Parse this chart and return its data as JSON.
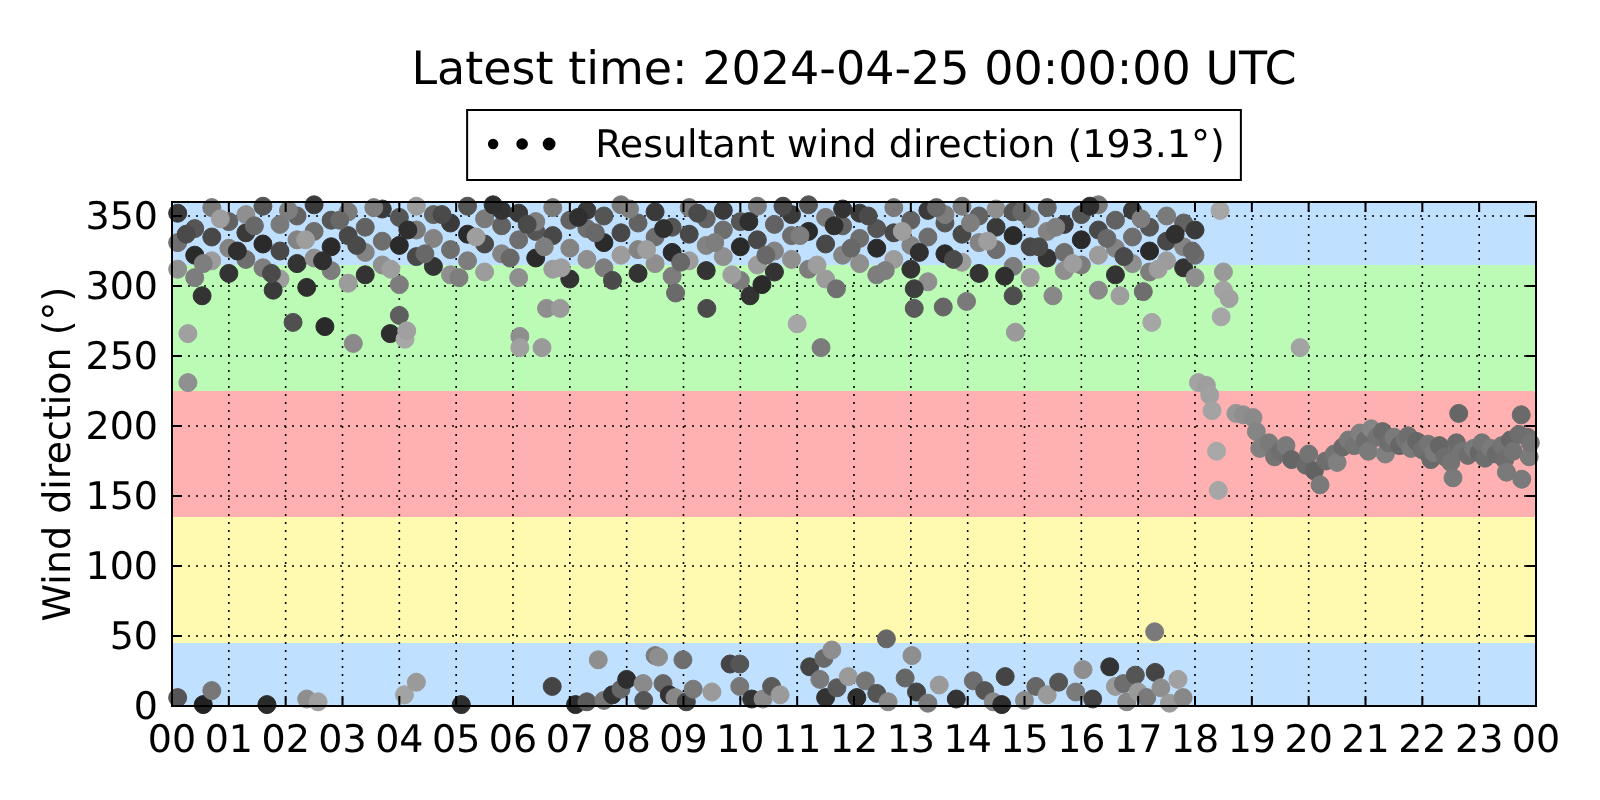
{
  "chart_data": {
    "type": "scatter",
    "title": "Latest time: 2024-04-25 00:00:00 UTC",
    "ylabel": "Wind direction (°)",
    "xlim": [
      0,
      24
    ],
    "xticks": [
      {
        "value": 0,
        "label": "00"
      },
      {
        "value": 1,
        "label": "01"
      },
      {
        "value": 2,
        "label": "02"
      },
      {
        "value": 3,
        "label": "03"
      },
      {
        "value": 4,
        "label": "04"
      },
      {
        "value": 5,
        "label": "05"
      },
      {
        "value": 6,
        "label": "06"
      },
      {
        "value": 7,
        "label": "07"
      },
      {
        "value": 8,
        "label": "08"
      },
      {
        "value": 9,
        "label": "09"
      },
      {
        "value": 10,
        "label": "10"
      },
      {
        "value": 11,
        "label": "11"
      },
      {
        "value": 12,
        "label": "12"
      },
      {
        "value": 13,
        "label": "13"
      },
      {
        "value": 14,
        "label": "14"
      },
      {
        "value": 15,
        "label": "15"
      },
      {
        "value": 16,
        "label": "16"
      },
      {
        "value": 17,
        "label": "17"
      },
      {
        "value": 18,
        "label": "18"
      },
      {
        "value": 19,
        "label": "19"
      },
      {
        "value": 20,
        "label": "20"
      },
      {
        "value": 21,
        "label": "21"
      },
      {
        "value": 22,
        "label": "22"
      },
      {
        "value": 23,
        "label": "23"
      },
      {
        "value": 24,
        "label": "00"
      }
    ],
    "ylim": [
      0,
      360
    ],
    "yticks": [
      0,
      50,
      100,
      150,
      200,
      250,
      300,
      350
    ],
    "grid": true,
    "legend": "top",
    "marker": "circle",
    "bands": [
      {
        "axis": "y",
        "from": 0,
        "to": 45,
        "color": "#bfe0ff"
      },
      {
        "axis": "y",
        "from": 45,
        "to": 135,
        "color": "#fffab0"
      },
      {
        "axis": "y",
        "from": 135,
        "to": 225,
        "color": "#ffb0b0"
      },
      {
        "axis": "y",
        "from": 225,
        "to": 315,
        "color": "#bbfbb6"
      },
      {
        "axis": "y",
        "from": 315,
        "to": 360,
        "color": "#bfe0ff"
      }
    ],
    "x": [
      0.1,
      0.1,
      0.1,
      0.4,
      0.4,
      0.4,
      0.7,
      0.7,
      0.7,
      1,
      1,
      1,
      1.3,
      1.3,
      1.3,
      1.6,
      1.6,
      1.6,
      1.9,
      1.9,
      1.9,
      2.2,
      2.2,
      2.2,
      2.5,
      2.5,
      2.5,
      2.8,
      2.8,
      2.8,
      3.1,
      3.1,
      3.1,
      3.4,
      3.4,
      3.4,
      3.7,
      3.7,
      3.7,
      4,
      4,
      4,
      4.3,
      4.3,
      4.3,
      4.6,
      4.6,
      4.6,
      4.9,
      4.9,
      4.9,
      5.2,
      5.2,
      5.2,
      5.5,
      5.5,
      5.5,
      5.8,
      5.8,
      5.8,
      6.1,
      6.1,
      6.1,
      6.4,
      6.4,
      6.4,
      6.7,
      6.7,
      6.7,
      7,
      7,
      7,
      7.3,
      7.3,
      7.3,
      7.6,
      7.6,
      7.6,
      7.9,
      7.9,
      7.9,
      8.2,
      8.2,
      8.2,
      8.5,
      8.5,
      8.5,
      8.8,
      8.8,
      8.8,
      9.1,
      9.1,
      9.1,
      9.4,
      9.4,
      9.4,
      9.7,
      9.7,
      9.7,
      10,
      10,
      10,
      10.3,
      10.3,
      10.3,
      10.6,
      10.6,
      10.6,
      10.9,
      10.9,
      10.9,
      11.2,
      11.2,
      11.2,
      11.5,
      11.5,
      11.5,
      11.8,
      11.8,
      11.8,
      12.1,
      12.1,
      12.1,
      12.4,
      12.4,
      12.4,
      12.7,
      12.7,
      12.7,
      13,
      13,
      13,
      13.3,
      13.3,
      13.3,
      13.6,
      13.6,
      13.6,
      13.9,
      13.9,
      13.9,
      14.2,
      14.2,
      14.2,
      14.5,
      14.5,
      14.5,
      14.8,
      14.8,
      14.8,
      15.1,
      15.1,
      15.1,
      15.4,
      15.4,
      15.4,
      15.7,
      15.7,
      15.7,
      16,
      16,
      16,
      16.3,
      16.3,
      16.3,
      16.6,
      16.6,
      16.6,
      16.9,
      16.9,
      16.9,
      17.2,
      17.2,
      17.2,
      17.5,
      17.5,
      17.5,
      17.8,
      17.8,
      17.8,
      18,
      18,
      18,
      0.28,
      0.28,
      0.53,
      1.78,
      2.13,
      2.37,
      2.69,
      3.19,
      3.84,
      4,
      4.1,
      4.13,
      6.12,
      6.12,
      6.51,
      6.59,
      6.83,
      8.86,
      9.41,
      10.17,
      10.38,
      11,
      11.42,
      11.69,
      12.57,
      13.06,
      13.06,
      13.57,
      13.98,
      14.84,
      14.8,
      15.5,
      16.3,
      16.68,
      17.09,
      17.24,
      17.29,
      18.44,
      18.5,
      18.5,
      18.6,
      18.46,
      19.85,
      0.1,
      0.55,
      0.7,
      1.67,
      2.37,
      2.57,
      4.09,
      4.3,
      5.09,
      6.69,
      7.1,
      7.3,
      7.5,
      7.6,
      7.75,
      7.9,
      8,
      8.29,
      8.3,
      8.5,
      8.56,
      8.64,
      8.75,
      8.85,
      8.99,
      9.05,
      9.17,
      9.5,
      9.82,
      9.99,
      9.99,
      10.2,
      10.4,
      10.55,
      10.7,
      11.22,
      11.4,
      11.47,
      11.5,
      11.61,
      11.7,
      11.9,
      12.05,
      12.2,
      12.4,
      12.6,
      12.9,
      13.02,
      13.1,
      13.3,
      13.5,
      13.8,
      14.1,
      14.3,
      14.45,
      14.6,
      14.66,
      15,
      15.2,
      15.4,
      15.6,
      15.9,
      16.03,
      16.2,
      16.5,
      16.6,
      16.74,
      16.8,
      16.95,
      17,
      17.15,
      17.3,
      17.4,
      17.55,
      17.7,
      17.79,
      18.06,
      18.2,
      18.26,
      18.3,
      18.38,
      18.41,
      18.72,
      18.85,
      19.02,
      19.08,
      19.14,
      19.3,
      19.4,
      19.5,
      19.6,
      19.7,
      19.95,
      20,
      20.1,
      20.2,
      20.3,
      20.45,
      20.5,
      20.6,
      20.7,
      20.8,
      20.9,
      21,
      21.05,
      21.1,
      21.2,
      21.3,
      21.35,
      21.4,
      21.5,
      21.6,
      21.7,
      21.75,
      21.8,
      21.9,
      22,
      22.1,
      22.15,
      22.2,
      22.3,
      22.4,
      22.5,
      22.54,
      22.6,
      22.64,
      22.7,
      22.8,
      22.9,
      23,
      23.05,
      23.1,
      23.2,
      23.3,
      23.4,
      23.45,
      23.48,
      23.55,
      23.6,
      23.7,
      23.74,
      23.75,
      23.85,
      23.88,
      23.9,
      0.25,
      0.55,
      0.85,
      1.15,
      1.45,
      1.75,
      2.05,
      2.35,
      2.65,
      2.95,
      3.25,
      3.55,
      3.85,
      4.15,
      4.45,
      4.75,
      5.05,
      5.35,
      5.65,
      5.95,
      6.25,
      6.55,
      6.85,
      7.15,
      7.45,
      7.75,
      8.05,
      8.35,
      8.65,
      8.95,
      9.25,
      9.55,
      9.85,
      10.15,
      10.45,
      10.75,
      11.05,
      11.35,
      11.65,
      11.95,
      12.25,
      12.55,
      12.85,
      13.15,
      13.45,
      13.75,
      14.05,
      14.35,
      14.65,
      14.95,
      15.25,
      15.55,
      15.85,
      16.15,
      16.45,
      16.75,
      17.05,
      17.35,
      17.65,
      17.95
    ],
    "series": [
      {
        "name": "Resultant wind direction (193.1°)",
        "color": "#000000",
        "values": [
          352,
          331,
          312,
          341,
          322,
          306,
          356,
          335,
          318,
          346,
          327,
          309,
          338,
          319,
          351,
          357,
          330,
          313,
          344,
          325,
          305,
          350,
          333,
          316,
          358,
          339,
          320,
          347,
          328,
          311,
          353,
          336,
          302,
          342,
          324,
          308,
          355,
          332,
          315,
          349,
          329,
          301,
          340,
          321,
          357,
          351,
          334,
          314,
          345,
          326,
          308,
          357,
          337,
          318,
          348,
          330,
          310,
          343,
          323,
          354,
          352,
          333,
          306,
          339,
          320,
          346,
          356,
          336,
          312,
          347,
          327,
          305,
          354,
          341,
          319,
          350,
          331,
          313,
          358,
          338,
          322,
          345,
          326,
          309,
          353,
          335,
          316,
          342,
          324,
          307,
          356,
          337,
          318,
          348,
          329,
          311,
          354,
          340,
          321,
          346,
          328,
          304,
          357,
          333,
          315,
          344,
          325,
          310,
          351,
          336,
          319,
          358,
          339,
          312,
          349,
          330,
          305,
          343,
          322,
          355,
          352,
          334,
          316,
          341,
          327,
          308,
          356,
          338,
          319,
          347,
          329,
          312,
          354,
          335,
          303,
          345,
          323,
          351,
          357,
          337,
          317,
          350,
          331,
          309,
          342,
          326,
          355,
          353,
          336,
          314,
          348,
          328,
          306,
          356,
          339,
          320,
          344,
          324,
          311,
          351,
          333,
          315,
          358,
          340,
          322,
          347,
          327,
          308,
          354,
          335,
          316,
          342,
          325,
          310,
          350,
          332,
          318,
          345,
          328,
          313,
          340,
          322,
          306,
          266,
          231,
          293,
          297,
          274,
          299,
          271,
          259,
          266,
          279,
          262,
          268,
          264,
          256,
          256,
          284,
          284,
          295,
          284,
          293,
          301,
          273,
          256,
          298,
          48,
          284,
          298,
          285,
          289,
          267,
          293,
          293,
          297,
          293,
          296,
          274,
          53,
          354,
          310,
          297,
          291,
          278,
          256,
          6,
          1,
          11,
          1,
          5,
          3,
          8,
          17,
          1,
          14,
          1,
          3,
          33,
          4,
          8,
          12,
          19,
          16,
          4,
          36,
          35,
          16,
          8,
          6,
          33,
          3,
          12,
          10,
          30,
          30,
          14,
          5,
          5,
          14,
          8,
          28,
          19,
          34,
          6,
          40,
          13,
          21,
          6,
          18,
          9,
          3,
          20,
          36,
          10,
          2,
          15,
          5,
          18,
          11,
          3,
          1,
          21,
          4,
          14,
          8,
          17,
          10,
          26,
          5,
          28,
          14,
          16,
          3,
          22,
          10,
          6,
          24,
          13,
          2,
          19,
          6,
          231,
          229,
          222,
          211,
          182,
          154,
          209,
          208,
          206,
          196,
          184,
          188,
          178,
          182,
          186,
          176,
          172,
          180,
          168,
          158,
          175,
          180,
          174,
          185,
          190,
          186,
          195,
          190,
          182,
          198,
          192,
          196,
          180,
          188,
          192,
          186,
          190,
          193,
          184,
          189,
          183,
          187,
          176,
          181,
          186,
          178,
          174,
          163,
          188,
          209,
          182,
          179,
          184,
          181,
          188,
          177,
          184,
          180,
          186,
          176,
          167,
          190,
          182,
          194,
          208,
          162,
          192,
          178,
          188,
          337,
          316,
          348,
          325,
          343,
          309,
          354,
          333,
          318,
          347,
          329,
          356,
          312,
          340,
          323,
          351,
          306,
          335,
          358,
          320,
          344,
          328,
          313,
          349,
          338,
          304,
          355,
          326,
          341,
          317,
          352,
          331,
          308,
          346,
          322,
          357,
          336,
          315,
          343,
          327,
          350,
          311,
          339,
          324,
          356,
          319,
          345,
          332,
          307,
          353,
          328,
          342,
          316,
          357,
          334,
          321,
          348,
          312,
          337,
          325
        ],
        "colors": [
          "#3a3a3a",
          "#6e6e6e",
          "#8f8f8f",
          "#555555",
          "#2a2a2a",
          "#7d7d7d",
          "#7a7a7a",
          "#484848",
          "#9c9c9c",
          "#626262",
          "#838383",
          "#333333",
          "#3a3a3a",
          "#6e6e6e",
          "#8f8f8f",
          "#555555",
          "#2a2a2a",
          "#7d7d7d",
          "#7a7a7a",
          "#484848",
          "#9c9c9c",
          "#626262",
          "#838383",
          "#333333",
          "#3a3a3a",
          "#6e6e6e",
          "#8f8f8f",
          "#555555",
          "#2a2a2a",
          "#7d7d7d",
          "#7a7a7a",
          "#484848",
          "#9c9c9c",
          "#626262",
          "#838383",
          "#333333",
          "#3a3a3a",
          "#6e6e6e",
          "#8f8f8f",
          "#555555",
          "#2a2a2a",
          "#7d7d7d",
          "#7a7a7a",
          "#484848",
          "#9c9c9c",
          "#626262",
          "#838383",
          "#333333",
          "#3a3a3a",
          "#6e6e6e",
          "#8f8f8f",
          "#555555",
          "#2a2a2a",
          "#7d7d7d",
          "#7a7a7a",
          "#484848",
          "#9c9c9c",
          "#626262",
          "#838383",
          "#333333",
          "#3a3a3a",
          "#6e6e6e",
          "#8f8f8f",
          "#555555",
          "#2a2a2a",
          "#7d7d7d",
          "#7a7a7a",
          "#484848",
          "#9c9c9c",
          "#626262",
          "#838383",
          "#333333",
          "#3a3a3a",
          "#6e6e6e",
          "#8f8f8f",
          "#555555",
          "#2a2a2a",
          "#7d7d7d",
          "#7a7a7a",
          "#484848",
          "#9c9c9c",
          "#626262",
          "#838383",
          "#333333",
          "#3a3a3a",
          "#6e6e6e",
          "#8f8f8f",
          "#555555",
          "#2a2a2a",
          "#7d7d7d",
          "#7a7a7a",
          "#484848",
          "#9c9c9c",
          "#626262",
          "#838383",
          "#333333",
          "#3a3a3a",
          "#6e6e6e",
          "#8f8f8f",
          "#555555",
          "#2a2a2a",
          "#7d7d7d",
          "#7a7a7a",
          "#484848",
          "#9c9c9c",
          "#626262",
          "#838383",
          "#333333",
          "#3a3a3a",
          "#6e6e6e",
          "#8f8f8f",
          "#555555",
          "#2a2a2a",
          "#7d7d7d",
          "#7a7a7a",
          "#484848",
          "#9c9c9c",
          "#626262",
          "#838383",
          "#333333",
          "#3a3a3a",
          "#6e6e6e",
          "#8f8f8f",
          "#555555",
          "#2a2a2a",
          "#7d7d7d",
          "#7a7a7a",
          "#484848",
          "#9c9c9c",
          "#626262",
          "#838383",
          "#333333",
          "#3a3a3a",
          "#6e6e6e",
          "#8f8f8f",
          "#555555",
          "#2a2a2a",
          "#7d7d7d",
          "#7a7a7a",
          "#484848",
          "#9c9c9c",
          "#626262",
          "#838383",
          "#333333",
          "#3a3a3a",
          "#6e6e6e",
          "#8f8f8f",
          "#555555",
          "#2a2a2a",
          "#7d7d7d",
          "#7a7a7a",
          "#484848",
          "#9c9c9c",
          "#626262",
          "#838383",
          "#333333",
          "#3a3a3a",
          "#6e6e6e",
          "#8f8f8f",
          "#555555",
          "#2a2a2a",
          "#7d7d7d",
          "#7a7a7a",
          "#484848",
          "#9c9c9c",
          "#626262",
          "#838383",
          "#333333",
          "#3a3a3a",
          "#6e6e6e",
          "#8f8f8f",
          "#555555",
          "#2a2a2a",
          "#7d7d7d",
          "#7a7a7a",
          "#484848",
          "#9c9c9c",
          "#626262",
          "#838383",
          "#333333",
          "#3a3a3a",
          "#6e6e6e",
          "#8f8f8f",
          "#a0a0a0",
          "#909090",
          "#333333",
          "#3a3a3a",
          "#505050",
          "#2e2e2e",
          "#2a2a2a",
          "#8a8a8a",
          "#2e2e2e",
          "#5e5e5e",
          "#a8a8a8",
          "#a0a0a0",
          "#8e8e8e",
          "#a0a0a0",
          "#9a9a9a",
          "#8e8e8e",
          "#9a9a9a",
          "#6a6a6a",
          "#4a4a4a",
          "#333333",
          "#2a2a2a",
          "#a6a6a6",
          "#7c7c7c",
          "#707070",
          "#666666",
          "#5a5a5a",
          "#3e3e3e",
          "#666666",
          "#7a7a7a",
          "#9a9a9a",
          "#4e4e4e",
          "#888888",
          "#8a8a8a",
          "#9e9e9e",
          "#6e6e6e",
          "#a6a6a6",
          "#7a7a7a",
          "#a6a6a6",
          "#999999",
          "#a3a3a3",
          "#a0a0a0",
          "#a6a6a6",
          "#a3a3a3",
          "#555555",
          "#222222",
          "#777777",
          "#2a2a2a",
          "#8e8e8e",
          "#a0a0a0",
          "#a3a3a3",
          "#9a9a9a",
          "#2e2e2e",
          "#444444",
          "#2a2a2a",
          "#5a5a5a",
          "#8e8e8e",
          "#777777",
          "#333333",
          "#666666",
          "#2e2e2e",
          "#8a8a8a",
          "#555555",
          "#7a7a7a",
          "#8e8e8e",
          "#666666",
          "#333333",
          "#888888",
          "#6e6e6e",
          "#444444",
          "#7a7a7a",
          "#9a9a9a",
          "#444444",
          "#555555",
          "#777777",
          "#333333",
          "#8a8a8a",
          "#5a5a5a",
          "#9a9a9a",
          "#444444",
          "#7a7a7a",
          "#6a6a6a",
          "#333333",
          "#8e8e8e",
          "#5a5a5a",
          "#9a9a9a",
          "#2e2e2e",
          "#777777",
          "#555555",
          "#8a8a8a",
          "#666666",
          "#8e8e8e",
          "#444444",
          "#7a7a7a",
          "#9a9a9a",
          "#333333",
          "#6e6e6e",
          "#555555",
          "#888888",
          "#2e2e2e",
          "#444444",
          "#8a8a8a",
          "#666666",
          "#9a9a9a",
          "#555555",
          "#7a7a7a",
          "#8e8e8e",
          "#444444",
          "#333333",
          "#9a9a9a",
          "#6e6e6e",
          "#888888",
          "#555555",
          "#9a9a9a",
          "#7a7a7a",
          "#444444",
          "#8e8e8e",
          "#9a9a9a",
          "#a0a0a0",
          "#888888",
          "#a3a3a3",
          "#9e9e9e",
          "#a0a0a0",
          "#a3a3a3",
          "#a8a8a8",
          "#a6a6a6",
          "#969696",
          "#8e8e8e",
          "#8a8a8a",
          "#858585",
          "#808080",
          "#7a7a7a",
          "#747474",
          "#6e6e6e",
          "#7a7a7a",
          "#666666",
          "#6a6a6a",
          "#747474",
          "#626262",
          "#7a7a7a",
          "#6e6e6e",
          "#747474",
          "#808080",
          "#6a6a6a",
          "#7a7a7a",
          "#747474",
          "#808080",
          "#6e6e6e",
          "#7a7a7a",
          "#858585",
          "#747474",
          "#6a6a6a",
          "#808080",
          "#6e6e6e",
          "#7a7a7a",
          "#666666",
          "#747474",
          "#6e6e6e",
          "#7a7a7a",
          "#666666",
          "#6e6e6e",
          "#747474",
          "#6a6a6a",
          "#7a7a7a",
          "#666666",
          "#6e6e6e",
          "#747474",
          "#7a7a7a",
          "#6a6a6a",
          "#666666",
          "#747474",
          "#6e6e6e",
          "#7a7a7a",
          "#666666",
          "#747474",
          "#6e6e6e",
          "#7a7a7a",
          "#6a6a6a",
          "#747474",
          "#6e6e6e",
          "#7a7a7a",
          "#666666",
          "#747474",
          "#6e6e6e",
          "#6a6a6a",
          "#7a7a7a",
          "#6e6e6e",
          "#7a7a7a",
          "#747474",
          "#4a4a4a",
          "#7e7e7e",
          "#9e9e9e",
          "#2f2f2f",
          "#686868",
          "#4a4a4a",
          "#7e7e7e",
          "#9e9e9e",
          "#2f2f2f",
          "#686868",
          "#4a4a4a",
          "#7e7e7e",
          "#9e9e9e",
          "#2f2f2f",
          "#686868",
          "#4a4a4a",
          "#7e7e7e",
          "#9e9e9e",
          "#2f2f2f",
          "#686868",
          "#4a4a4a",
          "#7e7e7e",
          "#9e9e9e",
          "#2f2f2f",
          "#686868",
          "#4a4a4a",
          "#7e7e7e",
          "#9e9e9e",
          "#2f2f2f",
          "#686868",
          "#4a4a4a",
          "#7e7e7e",
          "#9e9e9e",
          "#2f2f2f",
          "#686868",
          "#4a4a4a",
          "#7e7e7e",
          "#9e9e9e",
          "#2f2f2f",
          "#686868",
          "#4a4a4a",
          "#7e7e7e",
          "#9e9e9e",
          "#2f2f2f",
          "#686868",
          "#4a4a4a",
          "#7e7e7e",
          "#9e9e9e",
          "#2f2f2f",
          "#686868",
          "#4a4a4a",
          "#7e7e7e",
          "#9e9e9e",
          "#2f2f2f",
          "#686868",
          "#4a4a4a",
          "#7e7e7e",
          "#9e9e9e",
          "#2f2f2f",
          "#686868"
        ]
      }
    ]
  }
}
